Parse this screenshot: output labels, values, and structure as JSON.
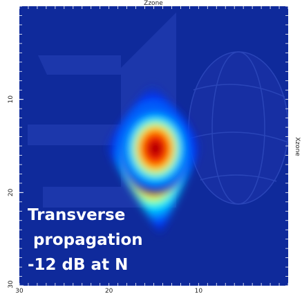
{
  "chart_data": {
    "type": "heatmap",
    "title": "Zzone",
    "right_axis_label": "Xzone",
    "x_axis": {
      "min": 30,
      "max": 0,
      "ticks": [
        30,
        20,
        10
      ]
    },
    "y_axis": {
      "min": 0,
      "max": 30,
      "ticks": [
        10,
        20,
        30
      ]
    },
    "colormap": [
      "#00008b",
      "#0000ff",
      "#00bfff",
      "#00ffff",
      "#ffff00",
      "#ff8000",
      "#ff0000",
      "#8b0000"
    ],
    "background_color": "#0f2a9b",
    "hotspot": {
      "center_x": 15,
      "center_y": 15.5,
      "peak_color": "#8b0000",
      "shape": "diamond"
    },
    "annotation_lines": [
      "Transverse",
      " propagation",
      "-12 dB at N"
    ]
  }
}
